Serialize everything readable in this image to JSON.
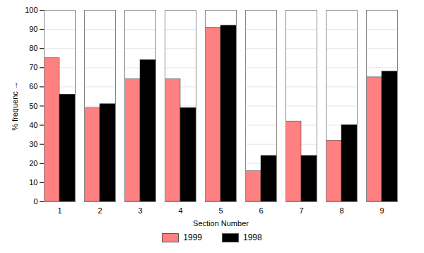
{
  "chart_data": {
    "type": "bar",
    "x_label": "Section Number",
    "y_label": "% frequenc",
    "categories": [
      "1",
      "2",
      "3",
      "4",
      "5",
      "6",
      "7",
      "8",
      "9"
    ],
    "series": [
      {
        "name": "1999",
        "color": "#ff8080",
        "values": [
          75,
          49,
          64,
          64,
          91,
          16,
          42,
          32,
          65
        ]
      },
      {
        "name": "1998",
        "color": "#000000",
        "values": [
          56,
          51,
          74,
          49,
          92,
          24,
          24,
          40,
          68
        ]
      }
    ],
    "ylim": [
      0,
      100
    ],
    "yticks": [
      0,
      10,
      20,
      30,
      40,
      50,
      60,
      70,
      80,
      90,
      100
    ],
    "grid": true,
    "legend": "bottom"
  }
}
